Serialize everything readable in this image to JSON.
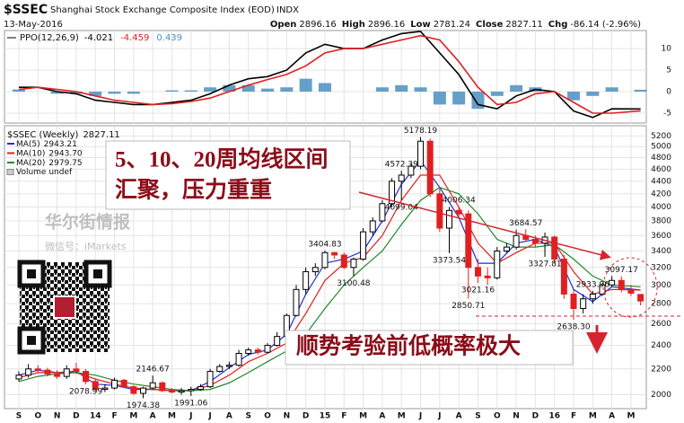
{
  "header": {
    "symbol": "$SSEC",
    "name": "Shanghai Stock Exchange Composite Index (EOD)",
    "exchange": "INDX",
    "date": "13-May-2016",
    "quote": [
      {
        "label": "Open",
        "value": "2896.16"
      },
      {
        "label": "High",
        "value": "2896.16"
      },
      {
        "label": "Low",
        "value": "2781.24"
      },
      {
        "label": "Close",
        "value": "2827.11"
      },
      {
        "label": "Chg",
        "value": "-86.14 (-2.96%)"
      }
    ]
  },
  "chart_data": [
    {
      "type": "line",
      "title": "PPO(12,26,9)",
      "xlim": [
        -0.75,
        32.8
      ],
      "ylim": [
        -7.3,
        14.2
      ],
      "yticks": [
        -5,
        0,
        5,
        10
      ],
      "grid": true,
      "series": [
        {
          "color": "#4a8fc0",
          "style": "bar",
          "last": "0.439",
          "x": [
            0,
            1,
            2,
            3,
            4,
            5,
            6,
            7,
            8,
            9,
            10,
            11,
            12,
            13,
            14,
            15,
            16,
            17,
            18,
            19,
            20,
            21,
            22,
            23,
            24,
            25,
            26,
            27,
            28,
            29,
            30,
            31,
            32.5
          ],
          "values": [
            0.5,
            0,
            -0.5,
            -0.5,
            -1,
            -0.5,
            -0.5,
            0,
            0.3,
            0.3,
            1,
            1.5,
            1.5,
            0.7,
            1,
            3,
            2,
            0,
            0,
            1,
            1.5,
            1,
            -3,
            -3,
            -4,
            -1,
            1.5,
            1,
            0,
            -2,
            -1,
            1,
            0.439
          ]
        },
        {
          "color": "#000000",
          "style": "line",
          "last": "-4.021",
          "x": [
            0,
            1,
            2,
            3,
            4,
            5,
            6,
            7,
            8,
            9,
            10,
            11,
            12,
            13,
            14,
            15,
            16,
            17,
            18,
            19,
            20,
            21,
            22,
            23,
            24,
            25,
            26,
            27,
            28,
            29,
            30,
            31,
            32.5
          ],
          "values": [
            1,
            1,
            0,
            -0.5,
            -2,
            -2.5,
            -3,
            -3,
            -2.5,
            -2,
            -0.5,
            1.5,
            3,
            3.5,
            5,
            9,
            11,
            10,
            10,
            12,
            13.5,
            14,
            9,
            4,
            -3,
            -4,
            -1,
            0.5,
            0,
            -4.5,
            -6,
            -4,
            -4.021
          ]
        },
        {
          "color": "#e02020",
          "style": "line",
          "last": "-4.459",
          "x": [
            0,
            1,
            2,
            3,
            4,
            5,
            6,
            7,
            8,
            9,
            10,
            11,
            12,
            13,
            14,
            15,
            16,
            17,
            18,
            19,
            20,
            21,
            22,
            23,
            24,
            25,
            26,
            27,
            28,
            29,
            30,
            31,
            32.5
          ],
          "values": [
            0.5,
            1,
            0.5,
            0,
            -1,
            -2,
            -2.5,
            -3,
            -2.8,
            -2.3,
            -1.5,
            0,
            1.5,
            2.8,
            4,
            6,
            9,
            10,
            10,
            11,
            12,
            13,
            12,
            7,
            1,
            -3,
            -2.5,
            -0.5,
            0,
            -2.5,
            -5,
            -5,
            -4.459
          ]
        }
      ]
    },
    {
      "type": "candlestick",
      "title": "$SSEC (Weekly)",
      "last": "2827.11",
      "log_scale": true,
      "grid": true,
      "xlim": [
        -0.75,
        32.8
      ],
      "ylim": [
        1900,
        5400
      ],
      "yticks": [
        2000,
        2200,
        2400,
        2600,
        2800,
        3000,
        3200,
        3400,
        3600,
        3800,
        4000,
        4200,
        4400,
        4600,
        4800,
        5000,
        5200
      ],
      "xticks": [
        {
          "value": 0,
          "label": "S"
        },
        {
          "value": 1,
          "label": "O"
        },
        {
          "value": 2,
          "label": "N"
        },
        {
          "value": 3,
          "label": "D"
        },
        {
          "value": 4,
          "label": "14"
        },
        {
          "value": 5,
          "label": "F"
        },
        {
          "value": 6,
          "label": "M"
        },
        {
          "value": 7,
          "label": "A"
        },
        {
          "value": 8,
          "label": "M"
        },
        {
          "value": 9,
          "label": "J"
        },
        {
          "value": 10,
          "label": "J"
        },
        {
          "value": 11,
          "label": "A"
        },
        {
          "value": 12,
          "label": "S"
        },
        {
          "value": 13,
          "label": "O"
        },
        {
          "value": 14,
          "label": "N"
        },
        {
          "value": 15,
          "label": "D"
        },
        {
          "value": 16,
          "label": "15"
        },
        {
          "value": 17,
          "label": "F"
        },
        {
          "value": 18,
          "label": "M"
        },
        {
          "value": 19,
          "label": "A"
        },
        {
          "value": 20,
          "label": "M"
        },
        {
          "value": 21,
          "label": "J"
        },
        {
          "value": 22,
          "label": "J"
        },
        {
          "value": 23,
          "label": "A"
        },
        {
          "value": 24,
          "label": "S"
        },
        {
          "value": 25,
          "label": "O"
        },
        {
          "value": 26,
          "label": "N"
        },
        {
          "value": 27,
          "label": "D"
        },
        {
          "value": 28,
          "label": "16"
        },
        {
          "value": 29,
          "label": "F"
        },
        {
          "value": 30,
          "label": "M"
        },
        {
          "value": 31,
          "label": "A"
        },
        {
          "value": 32,
          "label": "M"
        }
      ],
      "up_color": "#000000",
      "down_color": "#e02020",
      "x": [
        0,
        0.5,
        1,
        1.5,
        2,
        2.5,
        3,
        3.5,
        4,
        4.5,
        5,
        5.5,
        6,
        6.5,
        7,
        7.5,
        8,
        8.5,
        9,
        9.5,
        10,
        10.5,
        11,
        11.5,
        12,
        12.5,
        13,
        13.5,
        14,
        14.5,
        15,
        15.5,
        16,
        16.5,
        17,
        17.5,
        18,
        18.5,
        19,
        19.5,
        20,
        20.5,
        21,
        21.5,
        22,
        22.5,
        23,
        23.5,
        24,
        24.5,
        25,
        25.5,
        26,
        26.5,
        27,
        27.5,
        28,
        28.5,
        29,
        29.5,
        30,
        30.5,
        31,
        31.5,
        32,
        32.5
      ],
      "open": [
        2120,
        2150,
        2200,
        2190,
        2160,
        2140,
        2200,
        2180,
        2100,
        2040,
        2050,
        2110,
        2060,
        2010,
        2050,
        2090,
        2030,
        2020,
        2030,
        2040,
        2060,
        2180,
        2220,
        2230,
        2330,
        2360,
        2340,
        2400,
        2480,
        2680,
        2950,
        3150,
        3200,
        3380,
        3350,
        3200,
        3300,
        3650,
        3800,
        4050,
        4400,
        4500,
        4650,
        5100,
        4200,
        3700,
        3950,
        3900,
        3200,
        3100,
        3080,
        3400,
        3450,
        3600,
        3550,
        3500,
        3580,
        3300,
        2900,
        2750,
        2850,
        2900,
        3000,
        3050,
        2950,
        2896.16
      ],
      "high": [
        2180,
        2240,
        2230,
        2210,
        2190,
        2230,
        2250,
        2200,
        2120,
        2080,
        2130,
        2120,
        2070,
        2060,
        2146.67,
        2100,
        2050,
        2050,
        2060,
        2080,
        2200,
        2240,
        2260,
        2360,
        2380,
        2380,
        2420,
        2520,
        2700,
        3000,
        3200,
        3250,
        3404.83,
        3390,
        3380,
        3320,
        3700,
        3850,
        4100,
        4450,
        4572.39,
        4700,
        5178.19,
        5150,
        4300,
        4000,
        4006.34,
        3950,
        3300,
        3200,
        3450,
        3500,
        3680,
        3684.57,
        3600,
        3640,
        3600,
        3350,
        2950,
        2900,
        2933.96,
        3020,
        3100,
        3097.17,
        3000,
        2896.16
      ],
      "low": [
        2100,
        2130,
        2170,
        2140,
        2120,
        2120,
        2160,
        2078.99,
        2030,
        2020,
        2040,
        2050,
        2000,
        1974.38,
        2040,
        2020,
        2010,
        2000,
        1991.06,
        2030,
        2050,
        2170,
        2200,
        2220,
        2310,
        2320,
        2330,
        2390,
        2470,
        2670,
        2900,
        3100,
        3180,
        3300,
        3180,
        3100.48,
        3280,
        3600,
        3780,
        4000,
        4099.04,
        4450,
        4600,
        4150,
        3650,
        3373.54,
        3850,
        2850.71,
        3021.16,
        3000,
        3060,
        3380,
        3420,
        3520,
        3450,
        3327.81,
        3250,
        2850,
        2638.3,
        2700,
        2800,
        2880,
        2980,
        2920,
        2880,
        2781.24
      ],
      "close": [
        2150,
        2200,
        2190,
        2160,
        2140,
        2200,
        2180,
        2100,
        2040,
        2050,
        2110,
        2060,
        2010,
        2050,
        2090,
        2030,
        2020,
        2030,
        2040,
        2060,
        2180,
        2220,
        2230,
        2330,
        2360,
        2340,
        2400,
        2480,
        2680,
        2950,
        3150,
        3200,
        3380,
        3350,
        3200,
        3300,
        3650,
        3800,
        4050,
        4400,
        4500,
        4650,
        5100,
        4200,
        3700,
        3950,
        3900,
        3200,
        3100,
        3080,
        3400,
        3450,
        3600,
        3550,
        3500,
        3580,
        3300,
        2900,
        2750,
        2850,
        2900,
        3000,
        3050,
        2950,
        2910,
        2827.11
      ],
      "series": [
        {
          "name": "MA(5)",
          "color": "#1f2fd0",
          "last": "2943.21",
          "x": [
            0,
            1,
            2,
            3,
            4,
            5,
            6,
            7,
            8,
            9,
            10,
            11,
            12,
            13,
            14,
            15,
            16,
            17,
            18,
            19,
            20,
            21,
            22,
            23,
            24,
            25,
            26,
            27,
            28,
            29,
            30,
            31,
            32.5
          ],
          "values": [
            2150,
            2190,
            2170,
            2180,
            2080,
            2070,
            2040,
            2040,
            2030,
            2030,
            2100,
            2210,
            2320,
            2360,
            2500,
            2900,
            3250,
            3300,
            3400,
            3800,
            4350,
            4750,
            4300,
            3850,
            3250,
            3250,
            3500,
            3550,
            3450,
            2950,
            2820,
            2980,
            2943.21
          ]
        },
        {
          "name": "MA(10)",
          "color": "#e02020",
          "last": "2943.70",
          "x": [
            0,
            1,
            2,
            3,
            4,
            5,
            6,
            7,
            8,
            9,
            10,
            11,
            12,
            13,
            14,
            15,
            16,
            17,
            18,
            19,
            20,
            21,
            22,
            23,
            24,
            25,
            26,
            27,
            28,
            29,
            30,
            31,
            32.5
          ],
          "values": [
            2130,
            2170,
            2170,
            2170,
            2120,
            2080,
            2050,
            2040,
            2030,
            2030,
            2070,
            2150,
            2260,
            2330,
            2420,
            2700,
            3050,
            3250,
            3320,
            3600,
            4100,
            4500,
            4500,
            4000,
            3500,
            3250,
            3380,
            3500,
            3500,
            3150,
            2900,
            2950,
            2943.7
          ]
        },
        {
          "name": "MA(20)",
          "color": "#1f8a2a",
          "last": "2979.75",
          "x": [
            0,
            1,
            2,
            3,
            4,
            5,
            6,
            7,
            8,
            9,
            10,
            11,
            12,
            13,
            14,
            15,
            16,
            17,
            18,
            19,
            20,
            21,
            22,
            23,
            24,
            25,
            26,
            27,
            28,
            29,
            30,
            31,
            32.5
          ],
          "values": [
            2100,
            2140,
            2160,
            2170,
            2150,
            2110,
            2080,
            2060,
            2040,
            2030,
            2040,
            2090,
            2170,
            2260,
            2350,
            2500,
            2750,
            3000,
            3200,
            3400,
            3750,
            4100,
            4300,
            4200,
            3900,
            3550,
            3450,
            3450,
            3480,
            3300,
            3100,
            3000,
            2979.75
          ]
        }
      ],
      "legend_extra": "Volume undef",
      "annotations": [
        {
          "x": 3.5,
          "value": 2078.99
        },
        {
          "x": 7,
          "value": 2146.67
        },
        {
          "x": 6.5,
          "value": 1974.38
        },
        {
          "x": 9,
          "value": 1991.06
        },
        {
          "x": 16,
          "value": 3404.83
        },
        {
          "x": 17.5,
          "value": 3100.48
        },
        {
          "x": 20,
          "value": 4572.39
        },
        {
          "x": 20,
          "value": 4099.04
        },
        {
          "x": 21,
          "value": 5178.19
        },
        {
          "x": 23,
          "value": 4006.34
        },
        {
          "x": 22.5,
          "value": 3373.54
        },
        {
          "x": 23.5,
          "value": 2850.71
        },
        {
          "x": 24,
          "value": 3021.16
        },
        {
          "x": 26.5,
          "value": 3684.57
        },
        {
          "x": 27.5,
          "value": 3327.81
        },
        {
          "x": 30,
          "value": 2933.96
        },
        {
          "x": 31.5,
          "value": 3097.17
        },
        {
          "x": 29,
          "value": 2638.3,
          "label": "2638.30"
        }
      ],
      "notes": [
        "5、10、20周均线区间",
        "汇聚，压力重重",
        "顺势考验前低概率极大"
      ],
      "watermark": [
        "华尔街情报",
        "微信号：iMarkets"
      ]
    }
  ]
}
